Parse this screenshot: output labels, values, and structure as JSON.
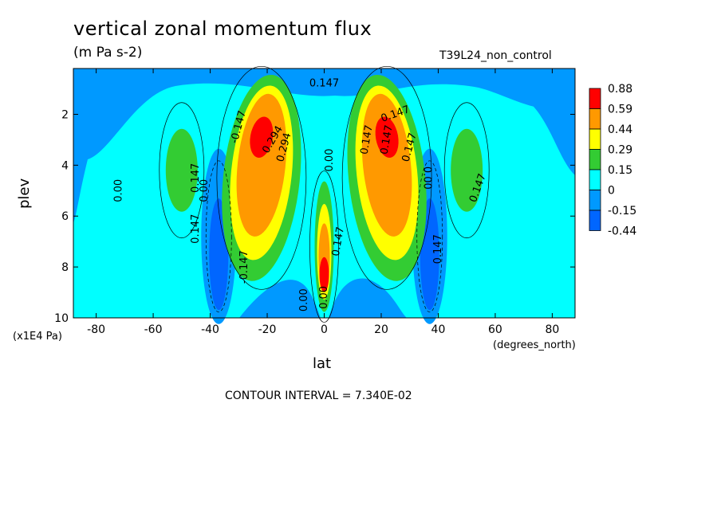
{
  "chart_data": {
    "type": "heatmap",
    "title": "vertical zonal momentum flux",
    "units": "(m Pa s-2)",
    "run_label": "T39L24_non_control",
    "xlabel": "lat",
    "x_unit": "(degrees_north)",
    "ylabel": "plev",
    "y_unit": "(x1E4 Pa)",
    "xlim": [
      -88,
      88
    ],
    "ylim": [
      10,
      0.2
    ],
    "x_ticks": [
      "-80",
      "-60",
      "-40",
      "-20",
      "0",
      "20",
      "40",
      "60",
      "80"
    ],
    "x_tick_values": [
      -80,
      -60,
      -40,
      -20,
      0,
      20,
      40,
      60,
      80
    ],
    "y_ticks": [
      "2",
      "4",
      "6",
      "8",
      "10"
    ],
    "y_tick_values": [
      2,
      4,
      6,
      8,
      10
    ],
    "contour_interval": "CONTOUR INTERVAL = 7.340E-02",
    "legend": {
      "labels": [
        "0.88",
        "0.59",
        "0.44",
        "0.29",
        "0.15",
        "0",
        "-0.15",
        "-0.44"
      ],
      "colors": [
        "#ff0000",
        "#ff9900",
        "#ffff00",
        "#33cc33",
        "#00ffff",
        "#0099ff",
        "#0066ff"
      ]
    },
    "features": [
      {
        "kind": "max",
        "lat": -22,
        "plev": 2.9,
        "value": 0.88,
        "color": "#ff0000"
      },
      {
        "kind": "max",
        "lat": 22,
        "plev": 2.9,
        "value": 0.88,
        "color": "#ff0000"
      },
      {
        "kind": "max",
        "lat": 0,
        "plev": 8.3,
        "value": 0.88,
        "color": "#ff0000"
      },
      {
        "kind": "max",
        "lat": -50,
        "plev": 4.0,
        "value": 0.15,
        "color": "#33cc33"
      },
      {
        "kind": "max",
        "lat": 50,
        "plev": 4.0,
        "value": 0.15,
        "color": "#33cc33"
      },
      {
        "kind": "min",
        "lat": -37,
        "plev": 7.5,
        "value": -0.44,
        "color": "#0066ff"
      },
      {
        "kind": "min",
        "lat": 37,
        "plev": 7.5,
        "value": -0.44,
        "color": "#0066ff"
      }
    ],
    "contour_labels": [
      "0.00",
      "0.147",
      "0.00",
      "0.147",
      "0.00",
      "-0.147",
      "0.147",
      "0.294",
      "0.147",
      "0.147",
      "0.294",
      "0.147",
      "0.00",
      "-0.147",
      "0.00",
      "0.147",
      "0.00",
      "0.147",
      "0.147",
      "0.147"
    ]
  }
}
